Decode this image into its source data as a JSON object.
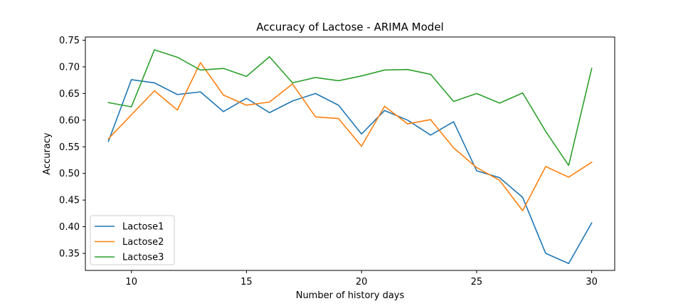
{
  "chart_data": {
    "type": "line",
    "title": "Accuracy of Lactose - ARIMA Model",
    "xlabel": "Number of history days",
    "ylabel": "Accuracy",
    "xlim": [
      8,
      31
    ],
    "ylim": [
      0.318,
      0.756
    ],
    "xticks": [
      10,
      15,
      20,
      25,
      30
    ],
    "yticks": [
      0.35,
      0.4,
      0.45,
      0.5,
      0.55,
      0.6,
      0.65,
      0.7,
      0.75
    ],
    "grid": false,
    "legend_position": "lower-left",
    "x": [
      9,
      10,
      11,
      12,
      13,
      14,
      15,
      16,
      17,
      18,
      19,
      20,
      21,
      22,
      23,
      24,
      25,
      26,
      27,
      28,
      29,
      30
    ],
    "series": [
      {
        "name": "Lactose1",
        "color": "#1f77b4",
        "values": [
          0.56,
          0.676,
          0.67,
          0.648,
          0.653,
          0.616,
          0.641,
          0.614,
          0.636,
          0.65,
          0.628,
          0.574,
          0.618,
          0.6,
          0.572,
          0.597,
          0.505,
          0.492,
          0.455,
          0.35,
          0.331,
          0.407
        ]
      },
      {
        "name": "Lactose2",
        "color": "#ff7f0e",
        "values": [
          0.565,
          0.61,
          0.655,
          0.619,
          0.708,
          0.647,
          0.628,
          0.634,
          0.668,
          0.606,
          0.603,
          0.551,
          0.626,
          0.593,
          0.601,
          0.548,
          0.511,
          0.487,
          0.43,
          0.513,
          0.493,
          0.521
        ]
      },
      {
        "name": "Lactose3",
        "color": "#2ca02c",
        "values": [
          0.633,
          0.625,
          0.732,
          0.718,
          0.694,
          0.697,
          0.682,
          0.719,
          0.67,
          0.68,
          0.674,
          0.683,
          0.694,
          0.695,
          0.686,
          0.635,
          0.65,
          0.632,
          0.651,
          0.579,
          0.515,
          0.697
        ]
      }
    ]
  }
}
